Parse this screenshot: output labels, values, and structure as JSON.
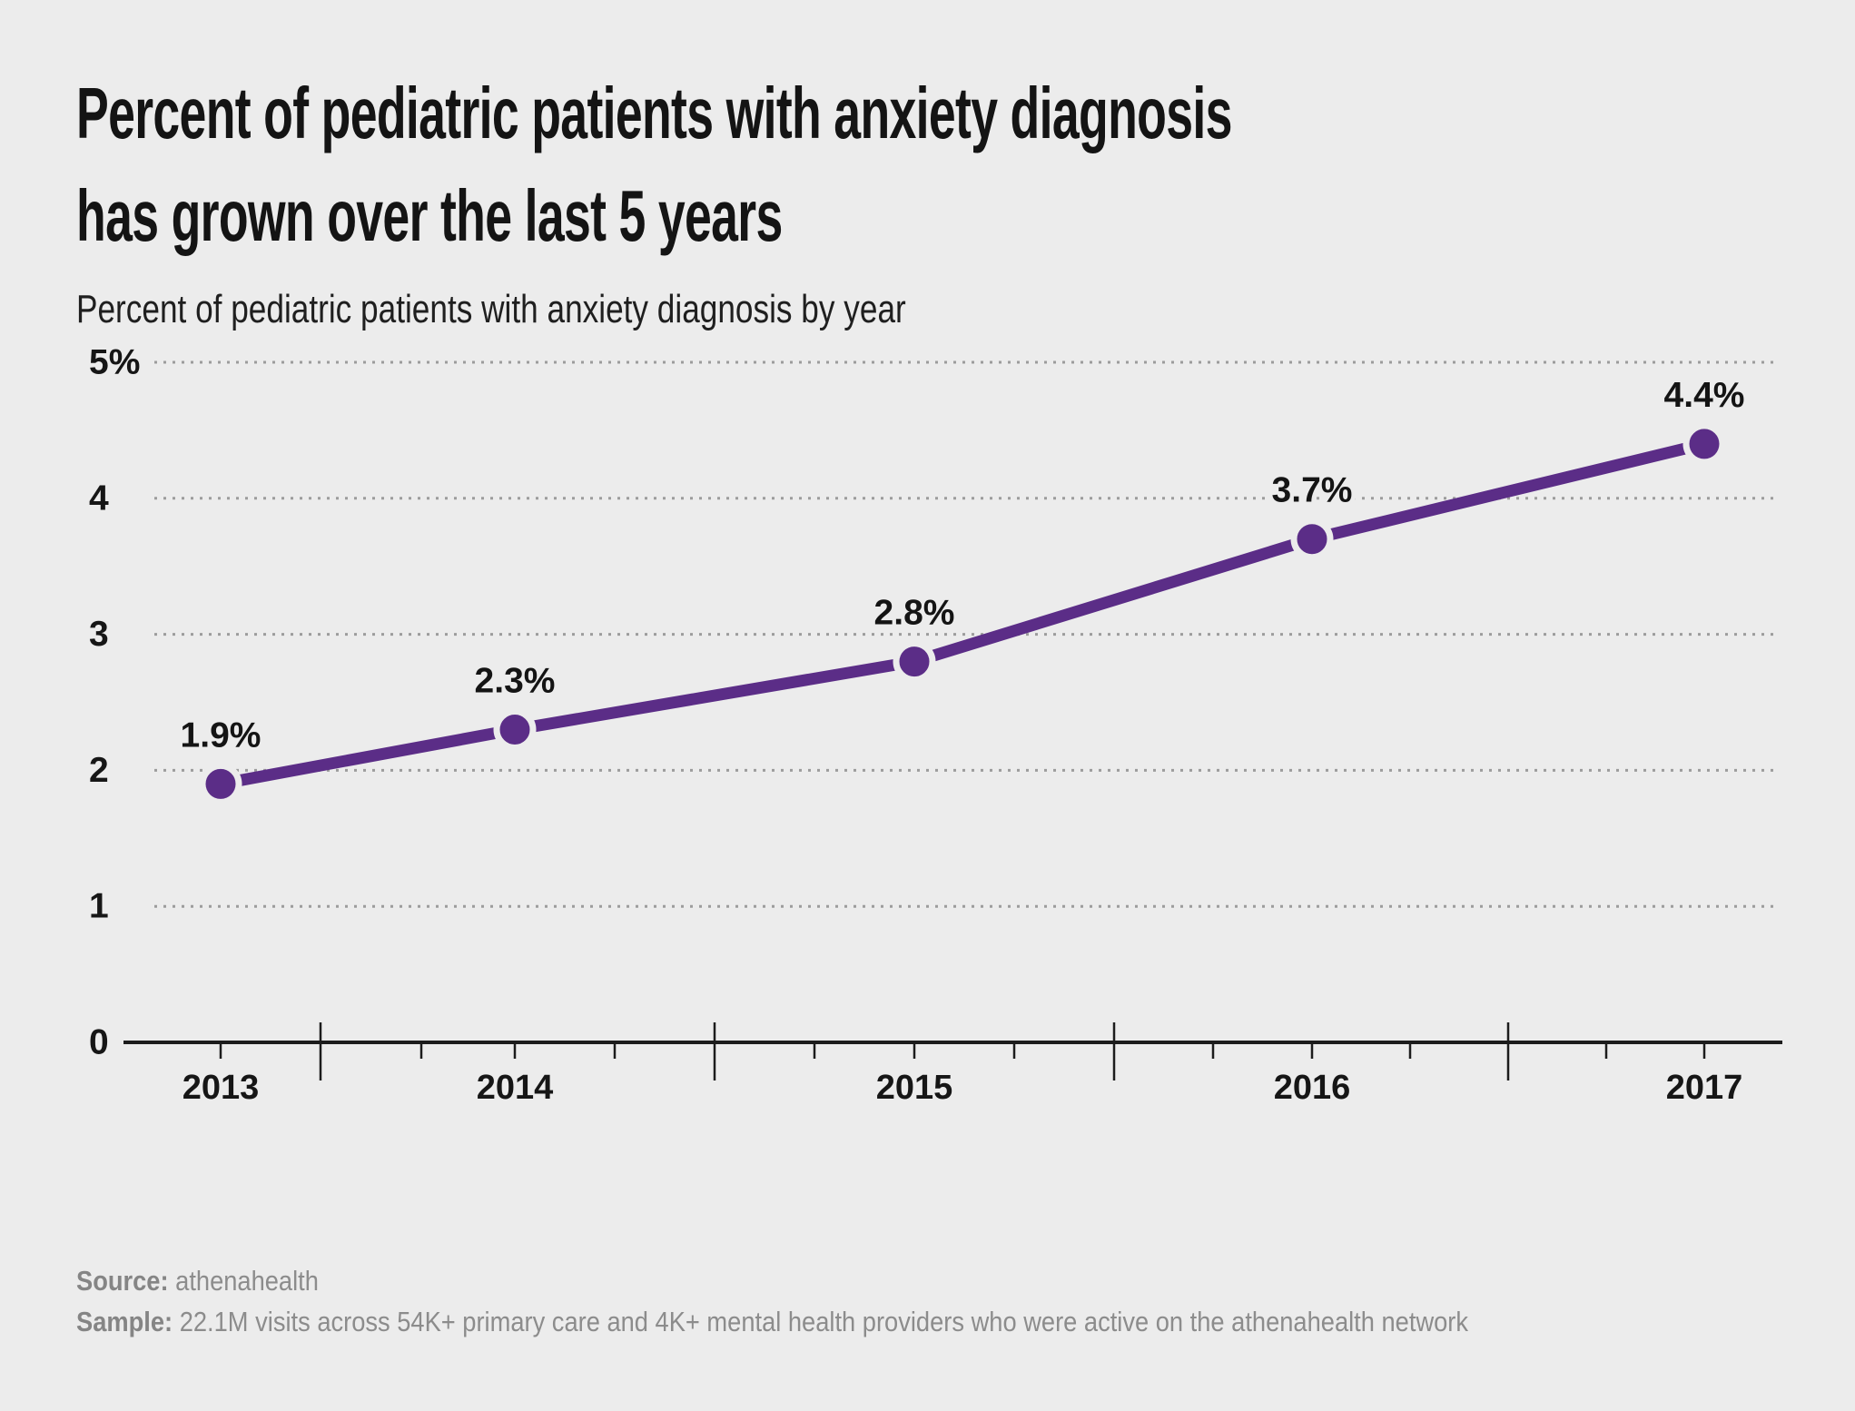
{
  "header": {
    "title_line1": "Percent of pediatric patients with anxiety diagnosis",
    "title_line2": "has grown over the last 5 years",
    "subtitle": "Percent of pediatric patients with anxiety diagnosis by year"
  },
  "chart_data": {
    "type": "line",
    "title": "Percent of pediatric patients with anxiety diagnosis by year",
    "categories": [
      "2013",
      "2014",
      "2015",
      "2016",
      "2017"
    ],
    "series": [
      {
        "name": "Percent of pediatric patients with anxiety diagnosis",
        "values": [
          1.9,
          2.3,
          2.8,
          3.7,
          4.4
        ]
      }
    ],
    "point_labels": [
      "1.9%",
      "2.3%",
      "2.8%",
      "3.7%",
      "4.4%"
    ],
    "xlabel": "",
    "ylabel": "",
    "ylim": [
      0,
      5
    ],
    "yticks": [
      {
        "value": 5,
        "label": "5%"
      },
      {
        "value": 4,
        "label": "4"
      },
      {
        "value": 3,
        "label": "3"
      },
      {
        "value": 2,
        "label": "2"
      },
      {
        "value": 1,
        "label": "1"
      },
      {
        "value": 0,
        "label": "0"
      }
    ],
    "grid": "horizontal-dotted",
    "legend": "none"
  },
  "footer": {
    "source_label": "Source:",
    "source_value": " athenahealth",
    "sample_label": "Sample:",
    "sample_value": " 22.1M visits across 54K+ primary care and 4K+ mental health providers who were active on the athenahealth network"
  },
  "colors": {
    "background": "#ececec",
    "line": "#5b2d87",
    "marker": "#5b2d87",
    "marker_ring": "#ececec",
    "grid_dots": "#9c9c9c",
    "axis": "#1c1c1c",
    "title_text": "#141414",
    "footer_text": "#8c8c8c"
  }
}
